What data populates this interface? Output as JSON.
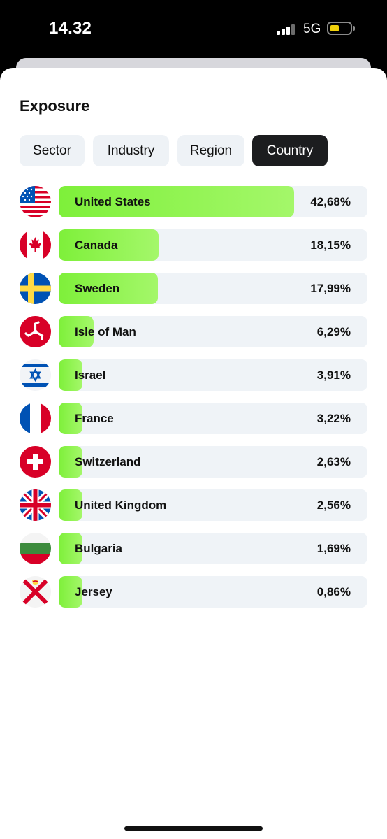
{
  "status_bar": {
    "time": "14.32",
    "network": "5G",
    "battery_level": 0.45,
    "signal_bars": 3
  },
  "page": {
    "title": "Exposure"
  },
  "tabs": [
    {
      "label": "Sector",
      "active": false
    },
    {
      "label": "Industry",
      "active": false
    },
    {
      "label": "Region",
      "active": false
    },
    {
      "label": "Country",
      "active": true
    }
  ],
  "countries": [
    {
      "name": "United States",
      "percent": "42,68%",
      "value": 42.68,
      "flag": "us-flag-icon"
    },
    {
      "name": "Canada",
      "percent": "18,15%",
      "value": 18.15,
      "flag": "canada-flag-icon"
    },
    {
      "name": "Sweden",
      "percent": "17,99%",
      "value": 17.99,
      "flag": "sweden-flag-icon"
    },
    {
      "name": "Isle of Man",
      "percent": "6,29%",
      "value": 6.29,
      "flag": "isle-of-man-flag-icon"
    },
    {
      "name": "Israel",
      "percent": "3,91%",
      "value": 3.91,
      "flag": "israel-flag-icon"
    },
    {
      "name": "France",
      "percent": "3,22%",
      "value": 3.22,
      "flag": "france-flag-icon"
    },
    {
      "name": "Switzerland",
      "percent": "2,63%",
      "value": 2.63,
      "flag": "switzerland-flag-icon"
    },
    {
      "name": "United Kingdom",
      "percent": "2,56%",
      "value": 2.56,
      "flag": "uk-flag-icon"
    },
    {
      "name": "Bulgaria",
      "percent": "1,69%",
      "value": 1.69,
      "flag": "bulgaria-flag-icon"
    },
    {
      "name": "Jersey",
      "percent": "0,86%",
      "value": 0.86,
      "flag": "jersey-flag-icon"
    }
  ],
  "colors": {
    "bar": "#8ef24f",
    "track": "#eff3f7",
    "active_tab": "#1c1d1f",
    "inactive_tab": "#eef2f6"
  }
}
